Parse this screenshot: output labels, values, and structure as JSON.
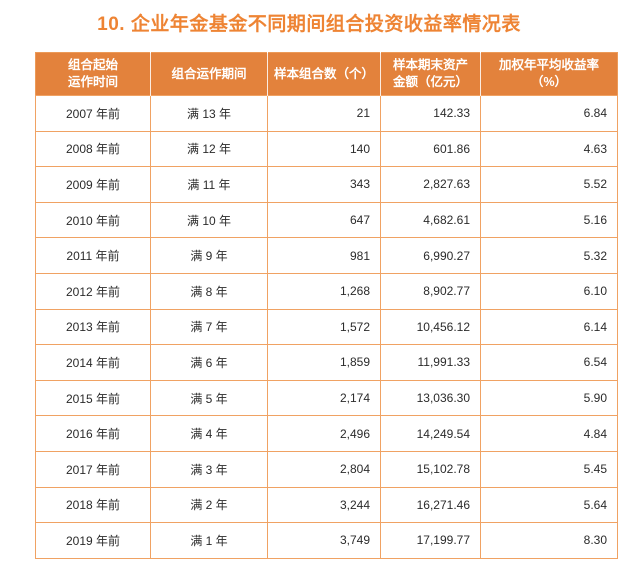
{
  "title": "10. 企业年金基金不同期间组合投资收益率情况表",
  "colors": {
    "accent_orange": "#e3823c",
    "title_orange": "#ee8434",
    "border_orange": "#f0a263",
    "text_dark": "#2b2b2b"
  },
  "table": {
    "headers": [
      "组合起始\n运作时间",
      "组合运作期间",
      "样本组合数（个）",
      "样本期末资产\n金额（亿元）",
      "加权年平均收益率\n（%）"
    ],
    "column_ids": [
      "start-time",
      "operation-period",
      "sample-count",
      "period-end-assets",
      "weighted-avg-return"
    ],
    "rows": [
      [
        "2007 年前",
        "满 13 年",
        "21",
        "142.33",
        "6.84"
      ],
      [
        "2008 年前",
        "满 12 年",
        "140",
        "601.86",
        "4.63"
      ],
      [
        "2009 年前",
        "满 11 年",
        "343",
        "2,827.63",
        "5.52"
      ],
      [
        "2010 年前",
        "满 10 年",
        "647",
        "4,682.61",
        "5.16"
      ],
      [
        "2011 年前",
        "满 9 年",
        "981",
        "6,990.27",
        "5.32"
      ],
      [
        "2012 年前",
        "满 8 年",
        "1,268",
        "8,902.77",
        "6.10"
      ],
      [
        "2013 年前",
        "满 7 年",
        "1,572",
        "10,456.12",
        "6.14"
      ],
      [
        "2014 年前",
        "满 6 年",
        "1,859",
        "11,991.33",
        "6.54"
      ],
      [
        "2015 年前",
        "满 5 年",
        "2,174",
        "13,036.30",
        "5.90"
      ],
      [
        "2016 年前",
        "满 4 年",
        "2,496",
        "14,249.54",
        "4.84"
      ],
      [
        "2017 年前",
        "满 3 年",
        "2,804",
        "15,102.78",
        "5.45"
      ],
      [
        "2018 年前",
        "满 2 年",
        "3,244",
        "16,271.46",
        "5.64"
      ],
      [
        "2019 年前",
        "满 1 年",
        "3,749",
        "17,199.77",
        "8.30"
      ]
    ]
  }
}
